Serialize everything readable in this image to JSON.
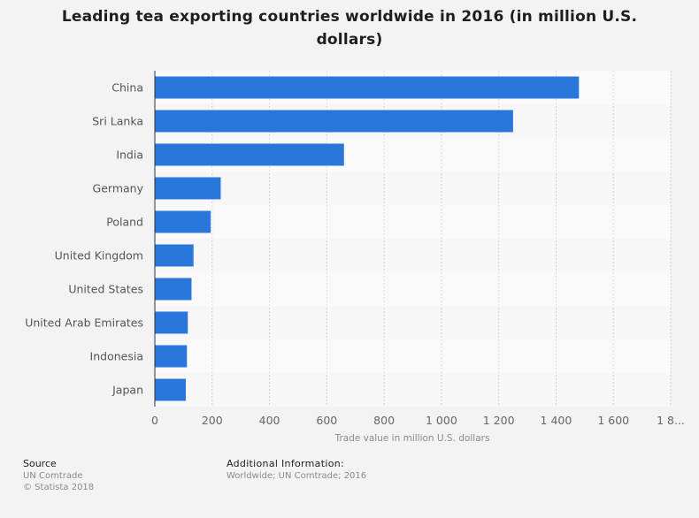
{
  "chart_data": {
    "type": "bar",
    "orientation": "horizontal",
    "title": "Leading tea exporting countries worldwide in 2016 (in million U.S. dollars)",
    "xlabel": "Trade value in million U.S. dollars",
    "ylabel": "",
    "categories": [
      "China",
      "Sri Lanka",
      "India",
      "Germany",
      "Poland",
      "United Kingdom",
      "United States",
      "United Arab Emirates",
      "Indonesia",
      "Japan"
    ],
    "values": [
      1480,
      1250,
      660,
      230,
      195,
      135,
      128,
      115,
      112,
      108
    ],
    "xlim": [
      0,
      1800
    ],
    "x_ticks": [
      "0",
      "200",
      "400",
      "600",
      "800",
      "1 000",
      "1 200",
      "1 400",
      "1 600",
      "1 8..."
    ],
    "grid": true,
    "bar_color": "#2a77dc"
  },
  "footer": {
    "source_label": "Source",
    "source_lines": [
      "UN Comtrade",
      "© Statista 2018"
    ],
    "additional_label": "Additional Information:",
    "additional_lines": [
      "Worldwide; UN Comtrade; 2016"
    ]
  }
}
